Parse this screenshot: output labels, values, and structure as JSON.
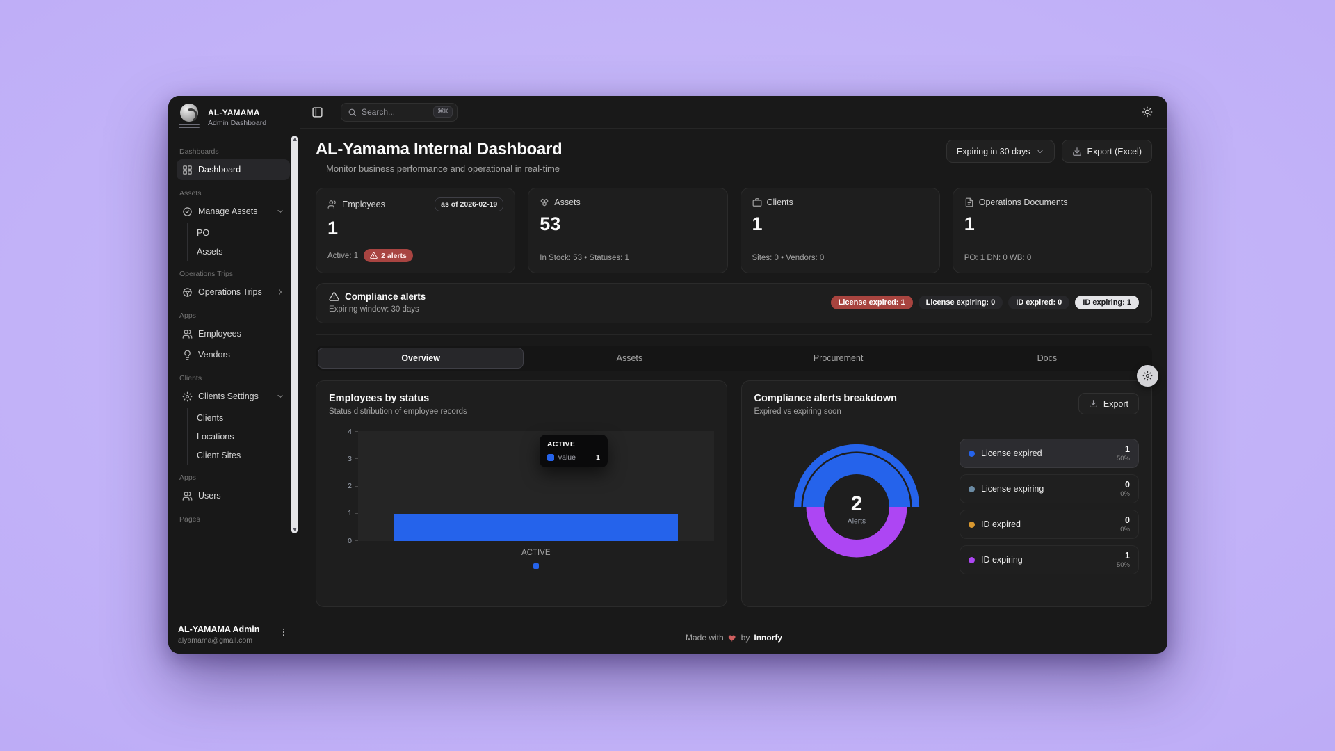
{
  "colors": {
    "background": "#bfaef7",
    "accent_blue": "#2563eb",
    "accent_purple": "#ad46f3",
    "slate": "#6b8ba4",
    "amber": "#d9982f",
    "danger": "#a8443f"
  },
  "sidebar": {
    "brand": {
      "title": "AL-YAMAMA",
      "subtitle": "Admin Dashboard",
      "logo_icon": "company-logo"
    },
    "groups": [
      {
        "label": "Dashboards",
        "items": [
          {
            "label": "Dashboard",
            "icon": "grid-icon",
            "active": true
          }
        ]
      },
      {
        "label": "Assets",
        "items": [
          {
            "label": "Manage Assets",
            "icon": "badge-check-icon",
            "chevron": "down",
            "children": [
              "PO",
              "Assets"
            ]
          }
        ]
      },
      {
        "label": "Operations Trips",
        "items": [
          {
            "label": "Operations Trips",
            "icon": "steering-wheel-icon",
            "chevron": "right"
          }
        ]
      },
      {
        "label": "Apps",
        "items": [
          {
            "label": "Employees",
            "icon": "users-icon"
          },
          {
            "label": "Vendors",
            "icon": "lightbulb-icon"
          }
        ]
      },
      {
        "label": "Clients",
        "items": [
          {
            "label": "Clients Settings",
            "icon": "gear-icon",
            "chevron": "down",
            "children": [
              "Clients",
              "Locations",
              "Client Sites"
            ]
          }
        ]
      },
      {
        "label": "Apps",
        "items": [
          {
            "label": "Users",
            "icon": "users-icon"
          }
        ]
      },
      {
        "label": "Pages",
        "items": []
      }
    ],
    "user": {
      "name": "AL-YAMAMA Admin",
      "email": "alyamama@gmail.com"
    }
  },
  "topbar": {
    "search_placeholder": "Search...",
    "shortcut": "⌘K"
  },
  "header": {
    "title": "AL-Yamama Internal Dashboard",
    "subtitle": "Monitor business performance and operational in real-time",
    "filter_label": "Expiring in 30 days",
    "export_label": "Export (Excel)"
  },
  "stat_cards": [
    {
      "icon": "users-icon",
      "label": "Employees",
      "badge": "as of 2026-02-19",
      "value": "1",
      "footer": "Active: 1",
      "alert_badge": "2 alerts"
    },
    {
      "icon": "boxes-icon",
      "label": "Assets",
      "value": "53",
      "footer": "In Stock: 53  • Statuses: 1"
    },
    {
      "icon": "briefcase-icon",
      "label": "Clients",
      "value": "1",
      "footer": "Sites: 0  • Vendors: 0"
    },
    {
      "icon": "file-icon",
      "label": "Operations Documents",
      "value": "1",
      "footer": "PO: 1  DN: 0  WB: 0"
    }
  ],
  "compliance": {
    "title": "Compliance alerts",
    "subtitle": "Expiring window: 30 days",
    "badges": [
      {
        "text": "License expired: 1",
        "variant": "danger"
      },
      {
        "text": "License expiring: 0",
        "variant": "dark"
      },
      {
        "text": "ID expired: 0",
        "variant": "dark"
      },
      {
        "text": "ID expiring: 1",
        "variant": "light"
      }
    ]
  },
  "tabs": [
    {
      "label": "Overview",
      "active": true
    },
    {
      "label": "Assets",
      "active": false
    },
    {
      "label": "Procurement",
      "active": false
    },
    {
      "label": "Docs",
      "active": false
    }
  ],
  "chart_data": [
    {
      "type": "bar",
      "title": "Employees by status",
      "subtitle": "Status distribution of employee records",
      "categories": [
        "ACTIVE"
      ],
      "values": [
        1
      ],
      "ylabel": "",
      "xlabel": "",
      "ylim": [
        0,
        4
      ],
      "yticks": [
        0,
        1,
        2,
        3,
        4
      ],
      "grid": false,
      "bar_color": "#2563eb",
      "legend_position": "bottom",
      "tooltip": {
        "title": "ACTIVE",
        "series": "value",
        "value": "1"
      }
    },
    {
      "type": "pie",
      "title": "Compliance alerts breakdown",
      "subtitle": "Expired vs expiring soon",
      "export_label": "Export",
      "center": {
        "value": "2",
        "label": "Alerts"
      },
      "legend_position": "right",
      "slices": [
        {
          "label": "License expired",
          "value": "1",
          "pct": "50%",
          "color": "#2563eb",
          "highlighted": true
        },
        {
          "label": "License expiring",
          "value": "0",
          "pct": "0%",
          "color": "#6b8ba4",
          "highlighted": false
        },
        {
          "label": "ID expired",
          "value": "0",
          "pct": "0%",
          "color": "#d9982f",
          "highlighted": false
        },
        {
          "label": "ID expiring",
          "value": "1",
          "pct": "50%",
          "color": "#ad46f3",
          "highlighted": false
        }
      ]
    }
  ],
  "page_footer": {
    "prefix": "Made with",
    "middle": "by",
    "brand": "Innorfy"
  }
}
